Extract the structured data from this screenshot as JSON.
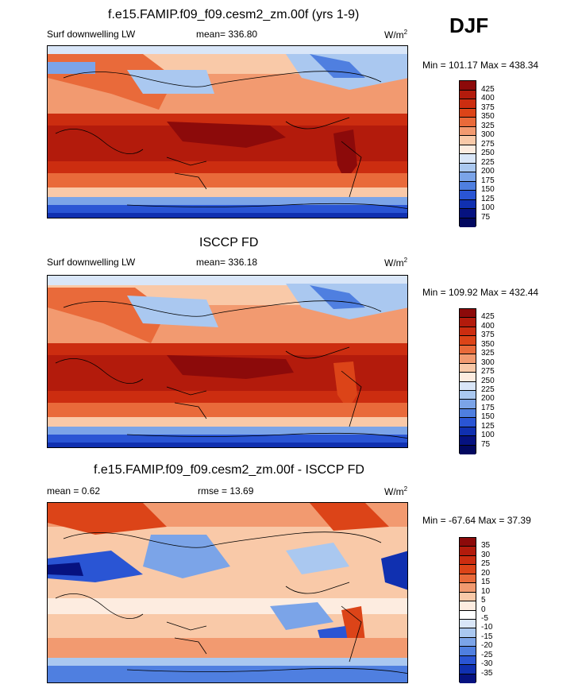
{
  "season": "DJF",
  "panels": [
    {
      "title": "f.e15.FAMIP.f09_f09.cesm2_zm.00f (yrs 1-9)",
      "left_label": "Surf downwelling LW",
      "center_label": "mean= 336.80",
      "units_base": "W/m",
      "units_exp": "2",
      "minmax": "Min = 101.17 Max = 438.34",
      "colorbar_labels": [
        "425",
        "400",
        "375",
        "350",
        "325",
        "300",
        "275",
        "250",
        "225",
        "200",
        "175",
        "150",
        "125",
        "100",
        "75"
      ],
      "colorbar_colors": [
        "#8c0a0a",
        "#b31b0c",
        "#cc2d10",
        "#dc4418",
        "#e96a3a",
        "#f29a70",
        "#f9c9a8",
        "#fdece0",
        "#d9e6f8",
        "#aac8f0",
        "#7ba4e8",
        "#4f7fe0",
        "#2a55d4",
        "#1030b0",
        "#061280",
        "#020860"
      ]
    },
    {
      "title": "ISCCP FD",
      "left_label": "Surf downwelling LW",
      "center_label": "mean= 336.18",
      "units_base": "W/m",
      "units_exp": "2",
      "minmax": "Min = 109.92 Max = 432.44",
      "colorbar_labels": [
        "425",
        "400",
        "375",
        "350",
        "325",
        "300",
        "275",
        "250",
        "225",
        "200",
        "175",
        "150",
        "125",
        "100",
        "75"
      ],
      "colorbar_colors": [
        "#8c0a0a",
        "#b31b0c",
        "#cc2d10",
        "#dc4418",
        "#e96a3a",
        "#f29a70",
        "#f9c9a8",
        "#fdece0",
        "#d9e6f8",
        "#aac8f0",
        "#7ba4e8",
        "#4f7fe0",
        "#2a55d4",
        "#1030b0",
        "#061280",
        "#020860"
      ]
    },
    {
      "title": "f.e15.FAMIP.f09_f09.cesm2_zm.00f - ISCCP FD",
      "left_label": "mean =   0.62",
      "center_label": "rmse =  13.69",
      "units_base": "W/m",
      "units_exp": "2",
      "minmax": "Min = -67.64 Max =  37.39",
      "colorbar_labels": [
        "35",
        "30",
        "25",
        "20",
        "15",
        "10",
        "5",
        "0",
        "-5",
        "-10",
        "-15",
        "-20",
        "-25",
        "-30",
        "-35"
      ],
      "colorbar_colors": [
        "#8c0a0a",
        "#b31b0c",
        "#cc2d10",
        "#dc4418",
        "#e96a3a",
        "#f29a70",
        "#f9c9a8",
        "#fdece0",
        "#ffffff",
        "#d9e6f8",
        "#aac8f0",
        "#7ba4e8",
        "#4f7fe0",
        "#2a55d4",
        "#1030b0",
        "#061280"
      ]
    }
  ]
}
